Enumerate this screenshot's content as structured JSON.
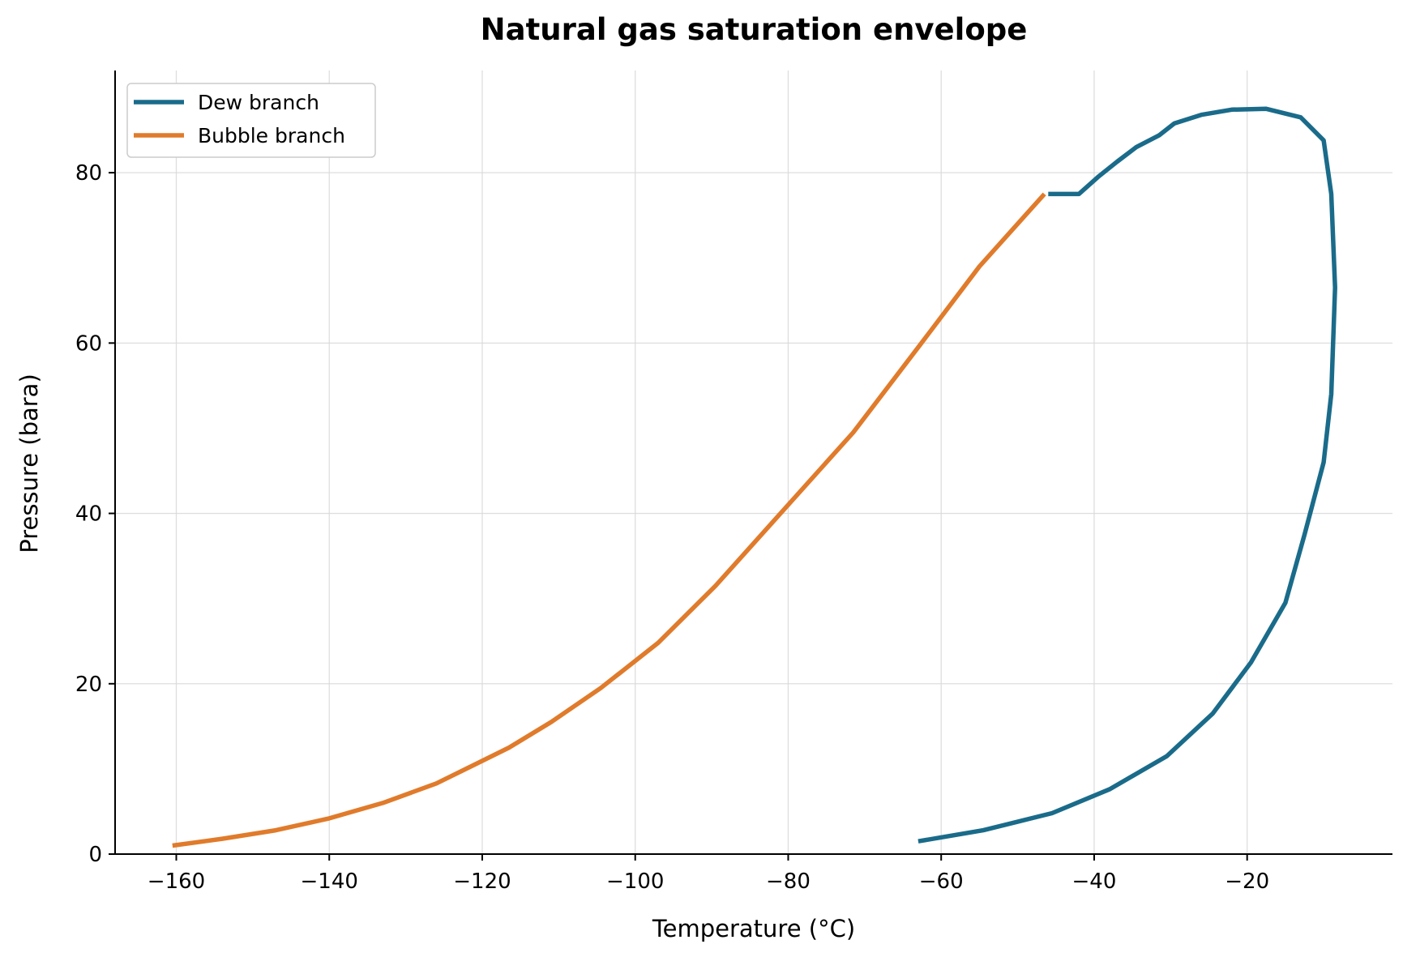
{
  "chart_data": {
    "type": "line",
    "title": "Natural gas saturation envelope",
    "xlabel": "Temperature (°C)",
    "ylabel": "Pressure (bara)",
    "xlim": [
      -168,
      -1
    ],
    "ylim": [
      0,
      92
    ],
    "xticks": [
      -160,
      -140,
      -120,
      -100,
      -80,
      -60,
      -40,
      -20
    ],
    "xtick_labels": [
      "−160",
      "−140",
      "−120",
      "−100",
      "−80",
      "−60",
      "−40",
      "−20"
    ],
    "yticks": [
      0,
      20,
      40,
      60,
      80
    ],
    "ytick_labels": [
      "0",
      "20",
      "40",
      "60",
      "80"
    ],
    "grid": true,
    "legend_position": "top-left",
    "series": [
      {
        "name": "Dew branch",
        "color": "#1a6b8a",
        "x": [
          -63,
          -54.5,
          -45.5,
          -38,
          -30.5,
          -24.5,
          -19.5,
          -15,
          -12.5,
          -10,
          -9,
          -8.5,
          -9,
          -10,
          -13,
          -17.5,
          -22,
          -26,
          -29.5,
          -31.5,
          -34.5,
          -37,
          -39.5,
          -42,
          -46
        ],
        "y": [
          1.5,
          2.8,
          4.8,
          7.6,
          11.5,
          16.5,
          22.5,
          29.5,
          37.5,
          46,
          54,
          66.5,
          77.5,
          83.8,
          86.5,
          87.5,
          87.4,
          86.8,
          85.8,
          84.4,
          83,
          81.3,
          79.5,
          77.5,
          77.5
        ]
      },
      {
        "name": "Bubble branch",
        "color": "#e07b2b",
        "x": [
          -160.5,
          -154,
          -147,
          -140,
          -133,
          -126,
          -121,
          -116.5,
          -111,
          -104.5,
          -97,
          -89.5,
          -80.5,
          -71.5,
          -63,
          -55,
          -46.5
        ],
        "y": [
          1,
          1.8,
          2.8,
          4.2,
          6,
          8.3,
          10.5,
          12.5,
          15.5,
          19.5,
          24.8,
          31.5,
          40.5,
          49.5,
          59.5,
          69,
          77.5
        ]
      }
    ]
  }
}
